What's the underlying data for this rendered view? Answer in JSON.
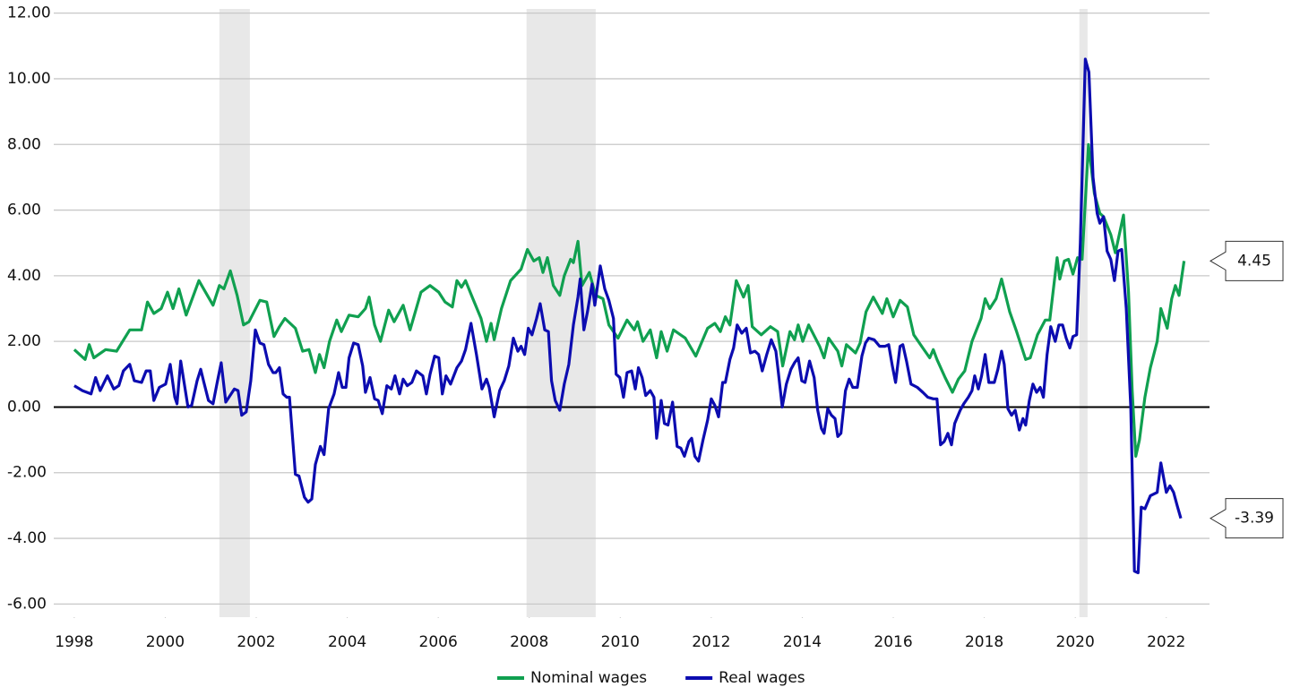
{
  "chart_data": {
    "type": "line",
    "xlim": [
      1997.55,
      2022.95
    ],
    "ylim": [
      -6.4,
      12.4
    ],
    "xticks": [
      1998,
      2000,
      2002,
      2004,
      2006,
      2008,
      2010,
      2012,
      2014,
      2016,
      2018,
      2020,
      2022
    ],
    "yticks": [
      {
        "value": -6,
        "label": "-6.00"
      },
      {
        "value": -4,
        "label": "-4.00"
      },
      {
        "value": -2,
        "label": "-2.00"
      },
      {
        "value": 0,
        "label": "0.00"
      },
      {
        "value": 2,
        "label": "2.00"
      },
      {
        "value": 4,
        "label": "4.00"
      },
      {
        "value": 6,
        "label": "6.00"
      },
      {
        "value": 8,
        "label": "8.00"
      },
      {
        "value": 10,
        "label": "10.00"
      },
      {
        "value": 12,
        "label": "12.00"
      }
    ],
    "grid": true,
    "legend": "bottom",
    "shaded": [
      [
        2001.19,
        2001.86
      ],
      [
        2007.94,
        2009.46
      ],
      [
        2020.09,
        2020.27
      ]
    ],
    "shade_color": "#e8e8e8",
    "series": [
      {
        "name": "Nominal wages",
        "color": "#10a050",
        "x": [
          1998.0,
          1998.24,
          1998.33,
          1998.43,
          1998.69,
          1998.93,
          1999.22,
          1999.48,
          1999.61,
          1999.75,
          1999.91,
          2000.05,
          2000.17,
          2000.3,
          2000.46,
          2000.74,
          2001.05,
          2001.19,
          2001.29,
          2001.43,
          2001.58,
          2001.72,
          2001.84,
          2002.08,
          2002.23,
          2002.39,
          2002.51,
          2002.63,
          2002.86,
          2003.02,
          2003.16,
          2003.3,
          2003.39,
          2003.49,
          2003.61,
          2003.77,
          2003.87,
          2004.04,
          2004.24,
          2004.4,
          2004.48,
          2004.6,
          2004.73,
          2004.91,
          2005.03,
          2005.23,
          2005.38,
          2005.62,
          2005.82,
          2006.01,
          2006.15,
          2006.31,
          2006.41,
          2006.51,
          2006.6,
          2006.76,
          2006.94,
          2007.06,
          2007.16,
          2007.23,
          2007.39,
          2007.59,
          2007.82,
          2007.96,
          2008.1,
          2008.22,
          2008.3,
          2008.4,
          2008.53,
          2008.67,
          2008.77,
          2008.91,
          2008.97,
          2009.07,
          2009.16,
          2009.32,
          2009.46,
          2009.62,
          2009.75,
          2009.95,
          2010.15,
          2010.31,
          2010.38,
          2010.5,
          2010.66,
          2010.8,
          2010.9,
          2011.03,
          2011.17,
          2011.43,
          2011.66,
          2011.92,
          2012.08,
          2012.2,
          2012.31,
          2012.41,
          2012.55,
          2012.71,
          2012.81,
          2012.9,
          2013.1,
          2013.3,
          2013.46,
          2013.57,
          2013.73,
          2013.83,
          2013.91,
          2014.01,
          2014.14,
          2014.38,
          2014.48,
          2014.58,
          2014.78,
          2014.87,
          2014.97,
          2015.17,
          2015.27,
          2015.4,
          2015.56,
          2015.76,
          2015.86,
          2016.0,
          2016.15,
          2016.31,
          2016.45,
          2016.65,
          2016.8,
          2016.88,
          2016.96,
          2017.14,
          2017.3,
          2017.43,
          2017.57,
          2017.73,
          2017.93,
          2018.02,
          2018.12,
          2018.26,
          2018.38,
          2018.56,
          2018.71,
          2018.91,
          2019.01,
          2019.17,
          2019.34,
          2019.44,
          2019.6,
          2019.66,
          2019.76,
          2019.85,
          2019.95,
          2020.05,
          2020.15,
          2020.29,
          2020.42,
          2020.54,
          2020.62,
          2020.78,
          2020.88,
          2021.06,
          2021.17,
          2021.25,
          2021.33,
          2021.41,
          2021.53,
          2021.65,
          2021.8,
          2021.88,
          2022.02,
          2022.12,
          2022.2,
          2022.28,
          2022.39
        ],
        "values": [
          1.75,
          1.45,
          1.9,
          1.5,
          1.75,
          1.7,
          2.35,
          2.35,
          3.2,
          2.85,
          3.0,
          3.5,
          3.0,
          3.6,
          2.8,
          3.85,
          3.1,
          3.7,
          3.6,
          4.15,
          3.4,
          2.5,
          2.6,
          3.25,
          3.2,
          2.15,
          2.45,
          2.7,
          2.4,
          1.7,
          1.75,
          1.05,
          1.6,
          1.2,
          2.0,
          2.65,
          2.3,
          2.8,
          2.75,
          3.0,
          3.35,
          2.5,
          2.0,
          2.95,
          2.6,
          3.1,
          2.35,
          3.5,
          3.7,
          3.5,
          3.2,
          3.05,
          3.85,
          3.65,
          3.85,
          3.3,
          2.7,
          2.0,
          2.55,
          2.05,
          3.0,
          3.85,
          4.2,
          4.8,
          4.45,
          4.55,
          4.1,
          4.55,
          3.7,
          3.4,
          4.0,
          4.5,
          4.4,
          5.05,
          3.7,
          4.1,
          3.4,
          3.3,
          2.5,
          2.1,
          2.65,
          2.35,
          2.6,
          2.0,
          2.35,
          1.5,
          2.3,
          1.7,
          2.35,
          2.1,
          1.55,
          2.4,
          2.55,
          2.3,
          2.75,
          2.5,
          3.85,
          3.35,
          3.7,
          2.45,
          2.2,
          2.45,
          2.3,
          1.25,
          2.3,
          2.05,
          2.5,
          2.0,
          2.5,
          1.85,
          1.5,
          2.1,
          1.7,
          1.25,
          1.9,
          1.65,
          1.95,
          2.9,
          3.35,
          2.85,
          3.3,
          2.75,
          3.25,
          3.05,
          2.2,
          1.8,
          1.5,
          1.75,
          1.45,
          0.9,
          0.45,
          0.85,
          1.1,
          2.0,
          2.7,
          3.3,
          3.0,
          3.3,
          3.9,
          2.9,
          2.3,
          1.45,
          1.5,
          2.2,
          2.65,
          2.65,
          4.55,
          3.9,
          4.45,
          4.5,
          4.05,
          4.55,
          4.5,
          8.0,
          6.5,
          5.9,
          5.8,
          5.25,
          4.7,
          5.85,
          3.5,
          0.5,
          -1.5,
          -1.0,
          0.3,
          1.2,
          2.0,
          3.0,
          2.4,
          3.3,
          3.7,
          3.4,
          4.45
        ]
      },
      {
        "name": "Real wages",
        "color": "#0c0cb0",
        "x": [
          1998.0,
          1998.18,
          1998.37,
          1998.47,
          1998.57,
          1998.73,
          1998.87,
          1998.98,
          1999.08,
          1999.22,
          1999.32,
          1999.48,
          1999.58,
          1999.67,
          1999.75,
          1999.87,
          2000.01,
          2000.11,
          2000.21,
          2000.26,
          2000.34,
          2000.5,
          2000.58,
          2000.7,
          2000.78,
          2000.85,
          2000.95,
          2001.05,
          2001.15,
          2001.23,
          2001.33,
          2001.52,
          2001.6,
          2001.68,
          2001.78,
          2001.88,
          2001.98,
          2002.08,
          2002.17,
          2002.27,
          2002.37,
          2002.43,
          2002.51,
          2002.59,
          2002.67,
          2002.73,
          2002.86,
          2002.94,
          2003.06,
          2003.14,
          2003.22,
          2003.3,
          2003.41,
          2003.49,
          2003.59,
          2003.71,
          2003.81,
          2003.89,
          2003.97,
          2004.04,
          2004.14,
          2004.24,
          2004.34,
          2004.4,
          2004.5,
          2004.6,
          2004.68,
          2004.77,
          2004.87,
          2004.97,
          2005.05,
          2005.15,
          2005.23,
          2005.32,
          2005.42,
          2005.52,
          2005.66,
          2005.74,
          2005.82,
          2005.92,
          2006.01,
          2006.09,
          2006.17,
          2006.27,
          2006.41,
          2006.51,
          2006.6,
          2006.72,
          2006.84,
          2006.96,
          2007.06,
          2007.12,
          2007.23,
          2007.35,
          2007.45,
          2007.55,
          2007.65,
          2007.75,
          2007.82,
          2007.9,
          2007.98,
          2008.06,
          2008.16,
          2008.24,
          2008.34,
          2008.42,
          2008.49,
          2008.57,
          2008.67,
          2008.77,
          2008.87,
          2008.97,
          2009.07,
          2009.12,
          2009.2,
          2009.28,
          2009.38,
          2009.44,
          2009.56,
          2009.66,
          2009.75,
          2009.85,
          2009.91,
          2009.99,
          2010.07,
          2010.15,
          2010.25,
          2010.33,
          2010.4,
          2010.48,
          2010.56,
          2010.66,
          2010.74,
          2010.8,
          2010.9,
          2010.97,
          2011.05,
          2011.15,
          2011.25,
          2011.33,
          2011.41,
          2011.51,
          2011.57,
          2011.64,
          2011.72,
          2011.82,
          2011.92,
          2012.0,
          2012.08,
          2012.16,
          2012.25,
          2012.31,
          2012.41,
          2012.49,
          2012.57,
          2012.67,
          2012.77,
          2012.86,
          2012.96,
          2013.04,
          2013.12,
          2013.22,
          2013.32,
          2013.42,
          2013.48,
          2013.56,
          2013.65,
          2013.75,
          2013.83,
          2013.91,
          2013.99,
          2014.06,
          2014.16,
          2014.26,
          2014.34,
          2014.42,
          2014.48,
          2014.56,
          2014.64,
          2014.72,
          2014.78,
          2014.85,
          2014.95,
          2015.03,
          2015.11,
          2015.21,
          2015.31,
          2015.39,
          2015.46,
          2015.58,
          2015.7,
          2015.82,
          2015.9,
          2015.98,
          2016.05,
          2016.15,
          2016.21,
          2016.29,
          2016.39,
          2016.53,
          2016.65,
          2016.76,
          2016.88,
          2016.96,
          2017.04,
          2017.12,
          2017.2,
          2017.28,
          2017.35,
          2017.47,
          2017.55,
          2017.65,
          2017.73,
          2017.79,
          2017.87,
          2017.94,
          2018.02,
          2018.1,
          2018.22,
          2018.3,
          2018.38,
          2018.44,
          2018.52,
          2018.6,
          2018.68,
          2018.77,
          2018.85,
          2018.91,
          2018.99,
          2019.07,
          2019.15,
          2019.23,
          2019.3,
          2019.38,
          2019.46,
          2019.56,
          2019.64,
          2019.72,
          2019.8,
          2019.88,
          2019.95,
          2020.03,
          2020.11,
          2020.22,
          2020.3,
          2020.39,
          2020.48,
          2020.54,
          2020.62,
          2020.7,
          2020.78,
          2020.86,
          2020.94,
          2021.02,
          2021.12,
          2021.22,
          2021.3,
          2021.38,
          2021.45,
          2021.53,
          2021.65,
          2021.8,
          2021.88,
          2022.0,
          2022.08,
          2022.16,
          2022.24,
          2022.32
        ],
        "values": [
          0.65,
          0.5,
          0.4,
          0.9,
          0.5,
          0.95,
          0.55,
          0.65,
          1.1,
          1.3,
          0.8,
          0.75,
          1.1,
          1.1,
          0.2,
          0.6,
          0.7,
          1.3,
          0.3,
          0.1,
          1.4,
          0.0,
          0.05,
          0.8,
          1.15,
          0.75,
          0.2,
          0.1,
          0.8,
          1.35,
          0.15,
          0.55,
          0.5,
          -0.25,
          -0.15,
          0.8,
          2.35,
          1.95,
          1.9,
          1.3,
          1.05,
          1.05,
          1.2,
          0.4,
          0.3,
          0.3,
          -2.05,
          -2.1,
          -2.75,
          -2.9,
          -2.8,
          -1.75,
          -1.2,
          -1.45,
          -0.05,
          0.4,
          1.05,
          0.6,
          0.6,
          1.5,
          1.95,
          1.9,
          1.25,
          0.45,
          0.9,
          0.25,
          0.2,
          -0.2,
          0.65,
          0.55,
          0.95,
          0.4,
          0.85,
          0.65,
          0.75,
          1.1,
          0.95,
          0.4,
          1.0,
          1.55,
          1.5,
          0.4,
          0.95,
          0.7,
          1.2,
          1.4,
          1.75,
          2.55,
          1.6,
          0.55,
          0.85,
          0.6,
          -0.3,
          0.5,
          0.8,
          1.25,
          2.1,
          1.7,
          1.85,
          1.6,
          2.4,
          2.2,
          2.7,
          3.15,
          2.35,
          2.3,
          0.8,
          0.2,
          -0.1,
          0.7,
          1.3,
          2.5,
          3.35,
          3.9,
          2.35,
          2.9,
          3.75,
          3.1,
          4.3,
          3.6,
          3.25,
          2.7,
          1.0,
          0.9,
          0.3,
          1.05,
          1.1,
          0.55,
          1.2,
          0.9,
          0.35,
          0.5,
          0.3,
          -0.95,
          0.2,
          -0.5,
          -0.55,
          0.15,
          -1.2,
          -1.25,
          -1.5,
          -1.05,
          -0.95,
          -1.5,
          -1.65,
          -1.0,
          -0.4,
          0.25,
          0.05,
          -0.3,
          0.75,
          0.75,
          1.45,
          1.8,
          2.5,
          2.25,
          2.4,
          1.65,
          1.7,
          1.6,
          1.1,
          1.6,
          2.05,
          1.7,
          1.0,
          0.0,
          0.7,
          1.15,
          1.35,
          1.5,
          0.8,
          0.75,
          1.4,
          0.9,
          -0.1,
          -0.65,
          -0.8,
          -0.05,
          -0.25,
          -0.35,
          -0.9,
          -0.8,
          0.5,
          0.85,
          0.6,
          0.6,
          1.55,
          1.95,
          2.1,
          2.05,
          1.85,
          1.85,
          1.9,
          1.25,
          0.75,
          1.85,
          1.9,
          1.4,
          0.7,
          0.6,
          0.45,
          0.3,
          0.25,
          0.25,
          -1.15,
          -1.05,
          -0.8,
          -1.15,
          -0.5,
          -0.1,
          0.1,
          0.3,
          0.5,
          0.95,
          0.55,
          0.95,
          1.6,
          0.75,
          0.75,
          1.15,
          1.7,
          1.3,
          -0.05,
          -0.25,
          -0.1,
          -0.7,
          -0.35,
          -0.55,
          0.2,
          0.7,
          0.45,
          0.6,
          0.3,
          1.6,
          2.45,
          2.0,
          2.5,
          2.5,
          2.1,
          1.8,
          2.15,
          2.2,
          5.0,
          10.6,
          10.2,
          7.0,
          5.9,
          5.6,
          5.8,
          4.75,
          4.5,
          3.85,
          4.75,
          4.8,
          3.0,
          0.0,
          -5.0,
          -5.05,
          -3.05,
          -3.1,
          -2.7,
          -2.6,
          -1.7,
          -2.6,
          -2.4,
          -2.6,
          -3.0,
          -3.39
        ]
      }
    ],
    "annotations": [
      {
        "value": 4.45,
        "label": "4.45"
      },
      {
        "value": -3.39,
        "label": "-3.39"
      }
    ]
  }
}
